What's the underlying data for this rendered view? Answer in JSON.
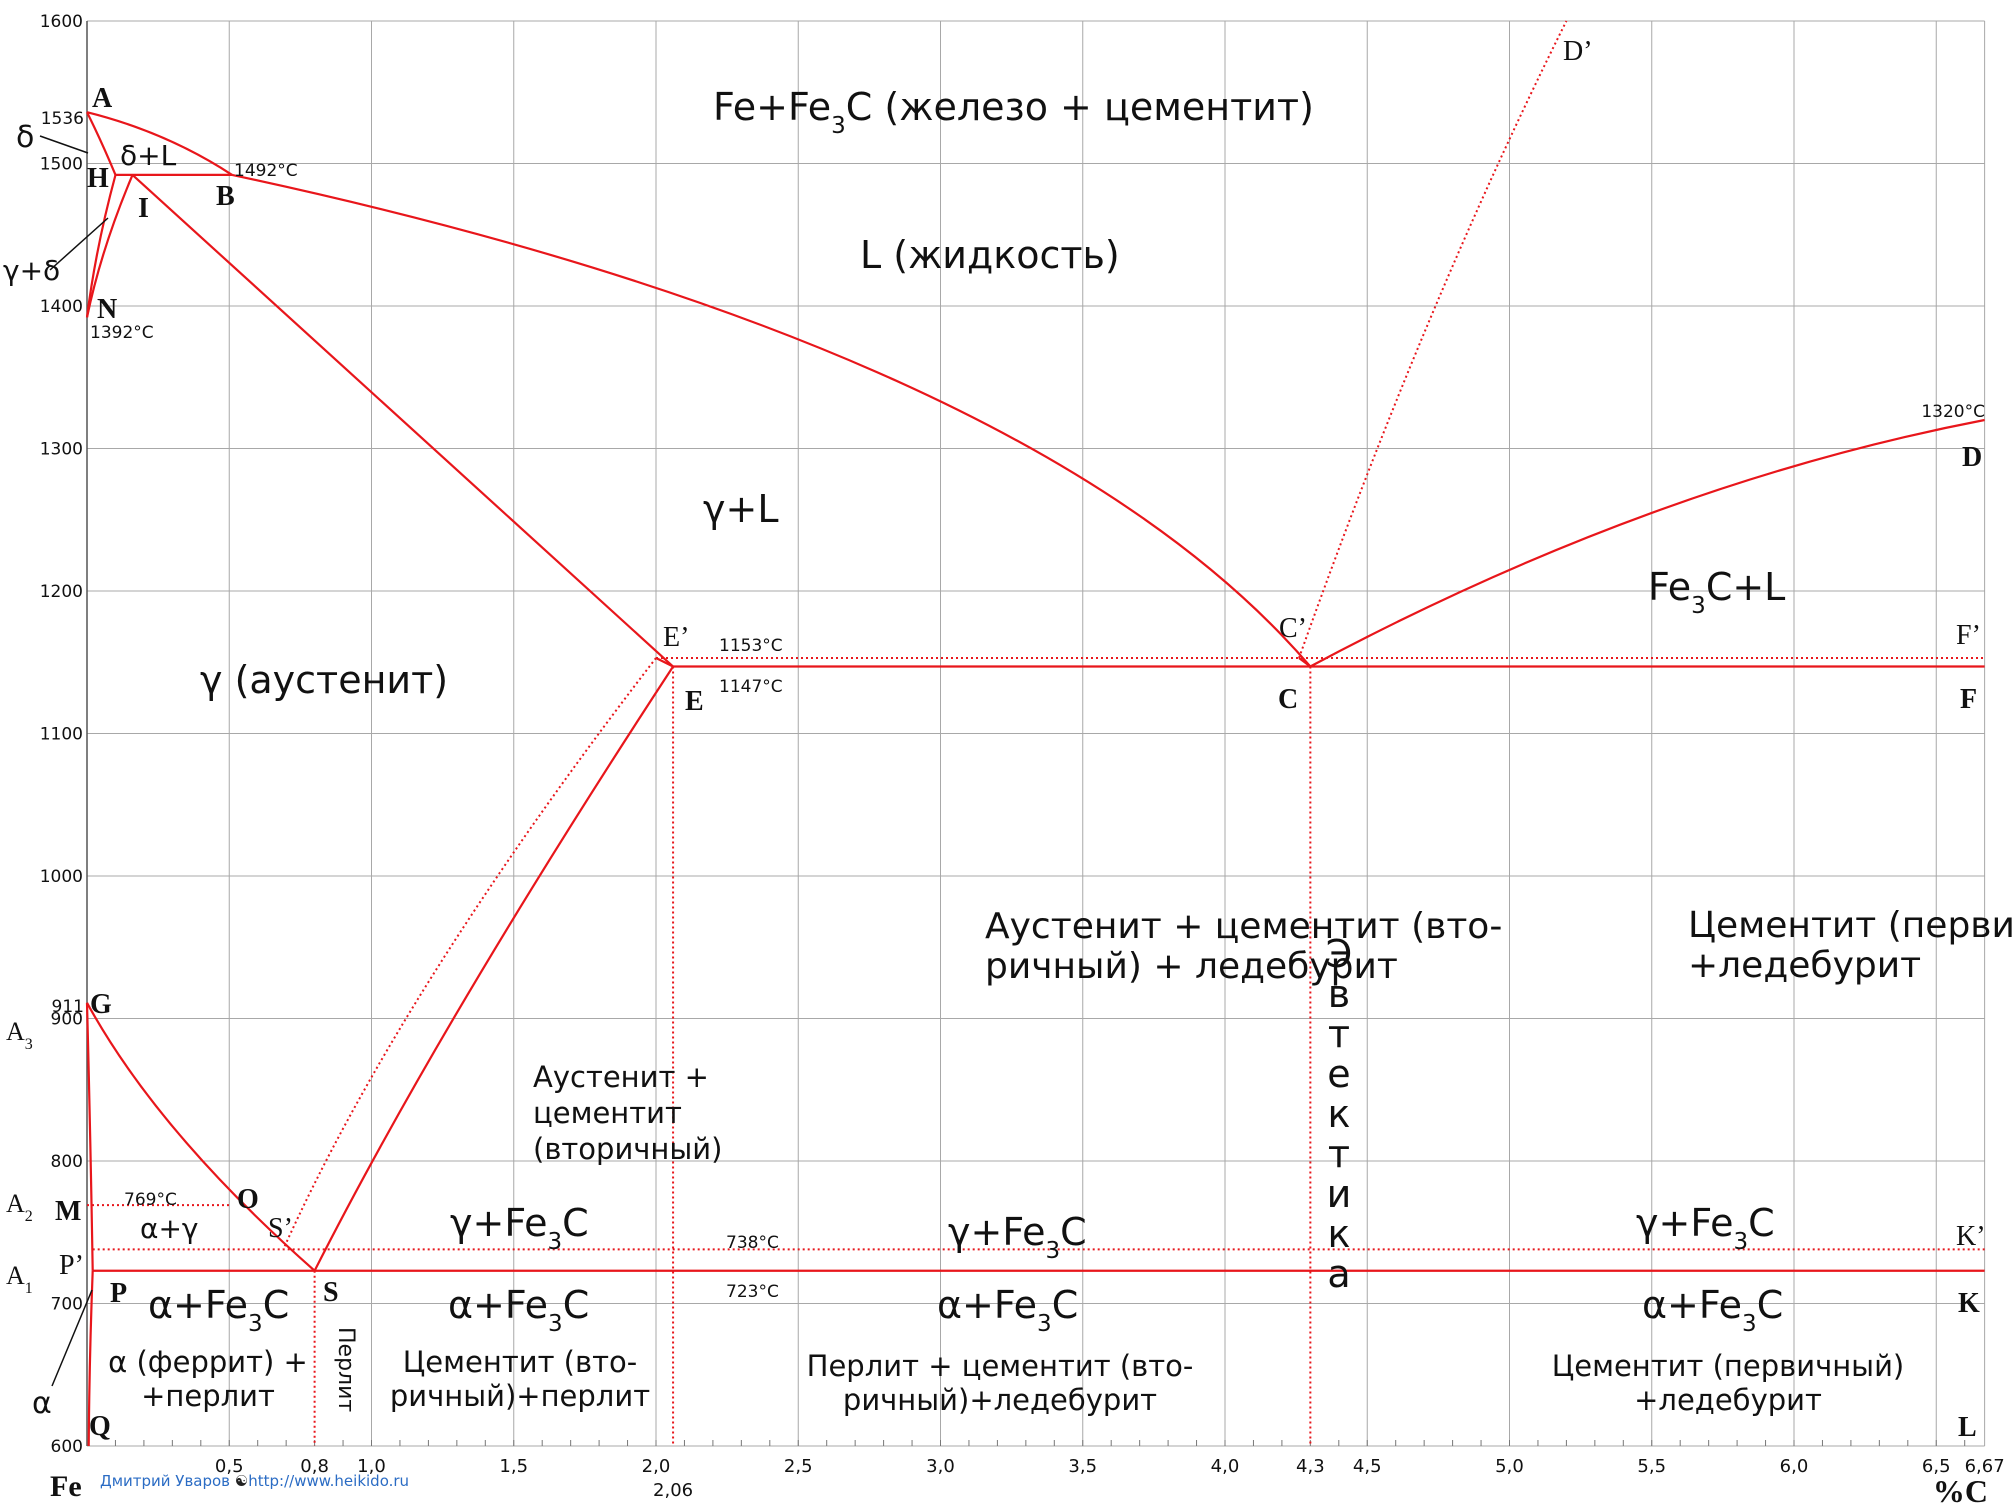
{
  "chart": {
    "y_axis": {
      "range": [
        600,
        1600
      ],
      "ticks": [
        "1600",
        "1500",
        "1400",
        "1300",
        "1200",
        "1100",
        "1000",
        "900",
        "800",
        "700",
        "600"
      ]
    },
    "x_axis": {
      "range": [
        0,
        6.67
      ],
      "tick_labels": [
        {
          "value": 0.5,
          "label": "0,5"
        },
        {
          "value": 0.8,
          "label": "0,8"
        },
        {
          "value": 1.0,
          "label": "1,0"
        },
        {
          "value": 1.5,
          "label": "1,5"
        },
        {
          "value": 2.0,
          "label": "2,0"
        },
        {
          "value": 2.5,
          "label": "2,5"
        },
        {
          "value": 3.0,
          "label": "3,0"
        },
        {
          "value": 3.5,
          "label": "3,5"
        },
        {
          "value": 4.0,
          "label": "4,0"
        },
        {
          "value": 4.3,
          "label": "4,3"
        },
        {
          "value": 4.5,
          "label": "4,5"
        },
        {
          "value": 5.0,
          "label": "5,0"
        },
        {
          "value": 5.5,
          "label": "5,5"
        },
        {
          "value": 6.0,
          "label": "6,0"
        },
        {
          "value": 6.5,
          "label": "6,5"
        },
        {
          "value": 6.67,
          "label": "6,67"
        }
      ],
      "extra_label": {
        "value": 2.06,
        "label": "2,06"
      },
      "left_label": "Fe",
      "right_label": "%C"
    },
    "grid": true
  },
  "points": {
    "A": {
      "label": "A",
      "x": 0,
      "y": 1536
    },
    "B": {
      "label": "B",
      "x": 0.51,
      "y": 1492
    },
    "H": {
      "label": "H",
      "x": 0.1,
      "y": 1492
    },
    "I": {
      "label": "I",
      "x": 0.16,
      "y": 1492
    },
    "N": {
      "label": "N",
      "x": 0,
      "y": 1392
    },
    "D": {
      "label": "D",
      "x": 6.67,
      "y": 1320
    },
    "E": {
      "label": "E",
      "x": 2.06,
      "y": 1147
    },
    "E_": {
      "label": "E’",
      "x": 2.0,
      "y": 1153
    },
    "C": {
      "label": "C",
      "x": 4.3,
      "y": 1147
    },
    "C_": {
      "label": "C’",
      "x": 4.26,
      "y": 1153
    },
    "F": {
      "label": "F",
      "x": 6.67,
      "y": 1147
    },
    "F_": {
      "label": "F’",
      "x": 6.67,
      "y": 1153
    },
    "D_": {
      "label": "D’",
      "x": 5.2,
      "y": 1600
    },
    "G": {
      "label": "G",
      "x": 0,
      "y": 911
    },
    "O": {
      "label": "O",
      "x": 0.5,
      "y": 769
    },
    "M": {
      "label": "M",
      "x": 0,
      "y": 769
    },
    "S": {
      "label": "S",
      "x": 0.8,
      "y": 723
    },
    "S_": {
      "label": "S’",
      "x": 0.69,
      "y": 738
    },
    "P": {
      "label": "P",
      "x": 0.02,
      "y": 723
    },
    "P_": {
      "label": "P’",
      "x": 0.02,
      "y": 738
    },
    "K": {
      "label": "K",
      "x": 6.67,
      "y": 723
    },
    "K_": {
      "label": "K’",
      "x": 6.67,
      "y": 738
    },
    "Q": {
      "label": "Q",
      "x": 0.006,
      "y": 600
    },
    "L": {
      "label": "L",
      "x": 6.67,
      "y": 600
    }
  },
  "critical_labels": {
    "A3": "A",
    "A2": "A",
    "A1": "A",
    "A3_sub": "3",
    "A2_sub": "2",
    "A1_sub": "1"
  },
  "temperatures": {
    "t1536": "1536",
    "t1492": "1492°C",
    "t1392": "1392°C",
    "t1320": "1320°C",
    "t1153": "1153°C",
    "t1147": "1147°C",
    "t911": "911",
    "t769": "769°C",
    "t738": "738°C",
    "t723": "723°C"
  },
  "regions": {
    "fe_fe3c_title_a": "Fe+Fe",
    "fe_fe3c_title_sub": "3",
    "fe_fe3c_title_b": "C (железо + цементит)",
    "liquid": "L (жидкость)",
    "gamma_l": "γ+L",
    "fe3c_l_a": "Fe",
    "fe3c_l_sub": "3",
    "fe3c_l_b": "C+L",
    "austenite": "γ (аустенит)",
    "delta": "δ",
    "delta_l": "δ+L",
    "gamma_delta": "γ+δ",
    "alpha": "α",
    "alpha_gamma": "α+γ",
    "aus_cem_led_1": "Аустенит + цементит (вто-",
    "aus_cem_led_2": "ричный) + ледебурит",
    "cem_led_1": "Цементит (первичный)",
    "cem_led_2": "+ледебурит",
    "aus_cem_1": "Аустенит +",
    "aus_cem_2": "цементит",
    "aus_cem_3": "(вторичный)",
    "gamma_fe3c_a": "γ+Fe",
    "gamma_fe3c_sub": "3",
    "gamma_fe3c_b": "C",
    "alpha_fe3c_a": "α+Fe",
    "alpha_fe3c_sub": "3",
    "alpha_fe3c_b": "C",
    "ferrite_1": "α (феррит) +",
    "ferrite_2": "+перлит",
    "pearlite_vertical": "Перлит",
    "cem_perl_1": "Цементит (вто-",
    "cem_perl_2": "ричный)+перлит",
    "perl_cem_led_1": "Перлит + цементит (вто-",
    "perl_cem_led_2": "ричный)+ледебурит",
    "cem_led_low_1": "Цементит (первичный)",
    "cem_led_low_2": "+ледебурит",
    "eutectic_vertical": "Эвтектика"
  },
  "credit": {
    "author": "Дмитрий Уваров",
    "url": "http://www.heikido.ru"
  },
  "colors": {
    "phase_line": "#e8161b",
    "grid": "#a8a8a8",
    "text": "#111111",
    "credit": "#2b6cc4"
  }
}
